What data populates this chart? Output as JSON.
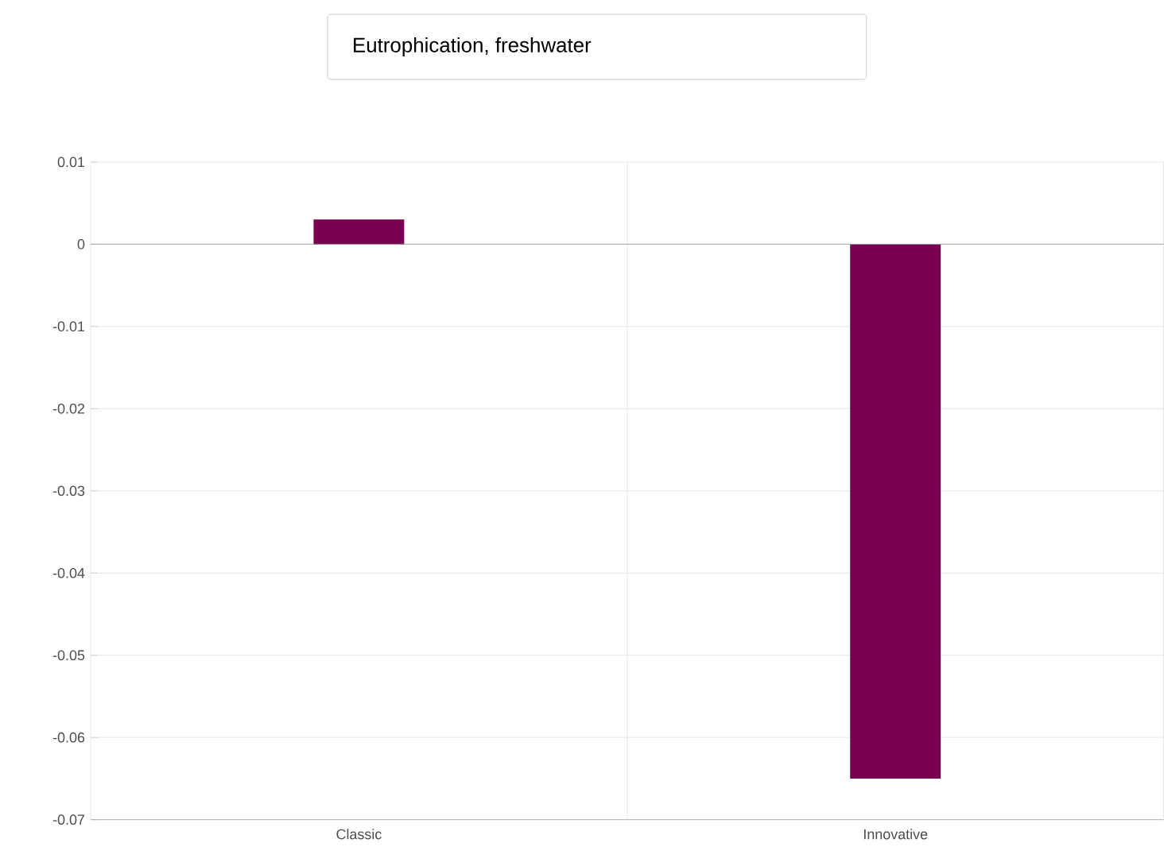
{
  "chart_data": {
    "type": "bar",
    "title": "Eutrophication, freshwater",
    "categories": [
      "Classic",
      "Innovative"
    ],
    "values": [
      0.003,
      -0.065
    ],
    "color": "#780050",
    "ylim": [
      -0.07,
      0.01
    ],
    "yticks": [
      -0.07,
      -0.06,
      -0.05,
      -0.04,
      -0.03,
      -0.02,
      -0.01,
      0,
      0.01
    ],
    "grid": true
  }
}
